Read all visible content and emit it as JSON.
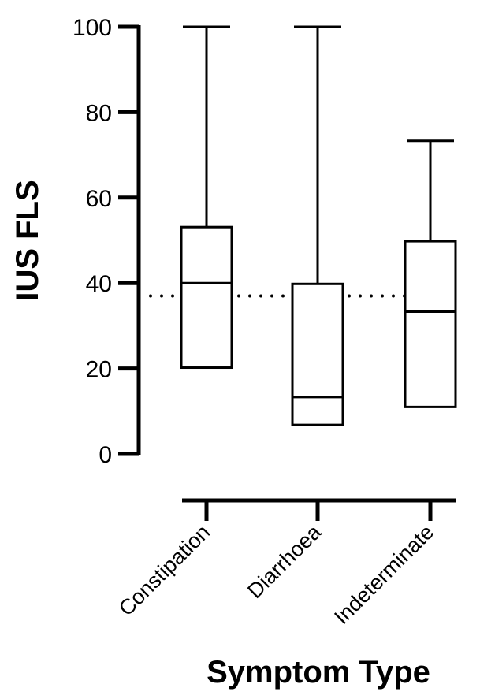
{
  "chart_data": {
    "type": "box",
    "title": "",
    "xlabel": "Symptom Type",
    "ylabel": "IUS FLS",
    "ylim": [
      0,
      100
    ],
    "yticks": [
      0,
      20,
      40,
      60,
      80,
      100
    ],
    "grid": false,
    "reference_line": {
      "y": 37,
      "style": "dotted"
    },
    "categories": [
      "Constipation",
      "Diarrhoea",
      "Indeterminate"
    ],
    "boxes": [
      {
        "category": "Constipation",
        "min": 20.2,
        "q1": 20.2,
        "median": 40.0,
        "q3": 53.1,
        "max": 100
      },
      {
        "category": "Diarrhoea",
        "min": 6.8,
        "q1": 6.8,
        "median": 13.3,
        "q3": 39.8,
        "max": 100
      },
      {
        "category": "Indeterminate",
        "min": 11.0,
        "q1": 11.0,
        "median": 33.3,
        "q3": 49.8,
        "max": 73.3
      }
    ]
  }
}
